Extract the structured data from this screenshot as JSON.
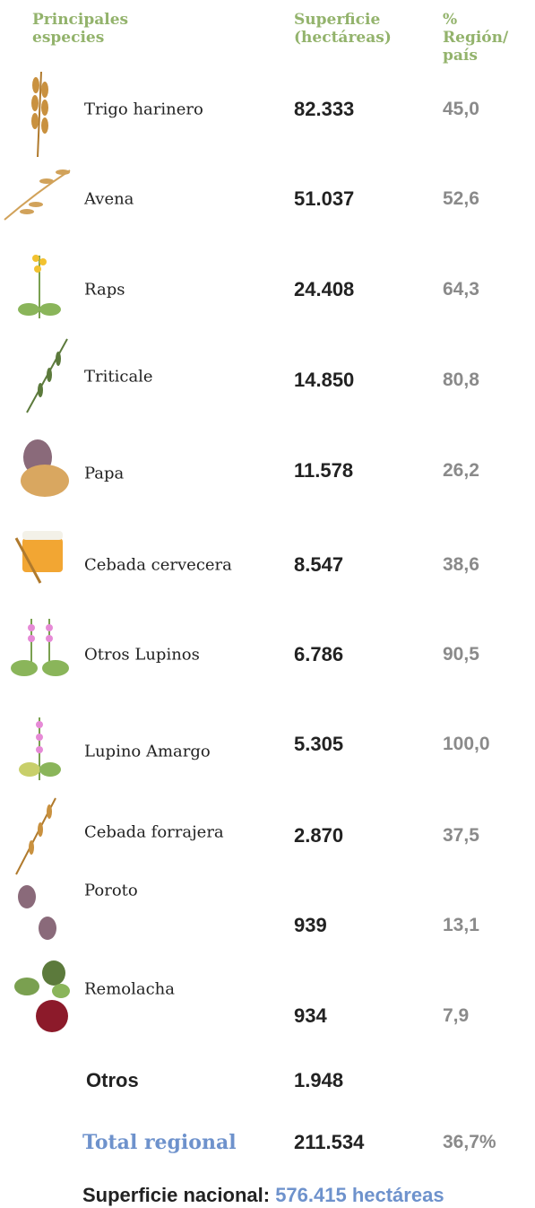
{
  "header": {
    "species": "Principales especies",
    "area": "Superficie (hectáreas)",
    "share": "% Región/ país"
  },
  "rows": [
    {
      "name": "Trigo harinero",
      "area": "82.333",
      "share": "45,0"
    },
    {
      "name": "Avena",
      "area": "51.037",
      "share": "52,6"
    },
    {
      "name": "Raps",
      "area": "24.408",
      "share": "64,3"
    },
    {
      "name": "Triticale",
      "area": "14.850",
      "share": "80,8"
    },
    {
      "name": "Papa",
      "area": "11.578",
      "share": "26,2"
    },
    {
      "name": "Cebada cervecera",
      "area": "8.547",
      "share": "38,6"
    },
    {
      "name": "Otros Lupinos",
      "area": "6.786",
      "share": "90,5"
    },
    {
      "name": "Lupino Amargo",
      "area": "5.305",
      "share": "100,0"
    },
    {
      "name": "Cebada forrajera",
      "area": "2.870",
      "share": "37,5"
    },
    {
      "name": "Poroto",
      "area": "939",
      "share": "13,1"
    },
    {
      "name": "Remolacha",
      "area": "934",
      "share": "7,9"
    }
  ],
  "others": {
    "name": "Otros",
    "area": "1.948"
  },
  "total": {
    "name": "Total regional",
    "area": "211.534",
    "share": "36,7%"
  },
  "footer": {
    "label": "Superficie nacional:",
    "value": "576.415 hectáreas"
  }
}
